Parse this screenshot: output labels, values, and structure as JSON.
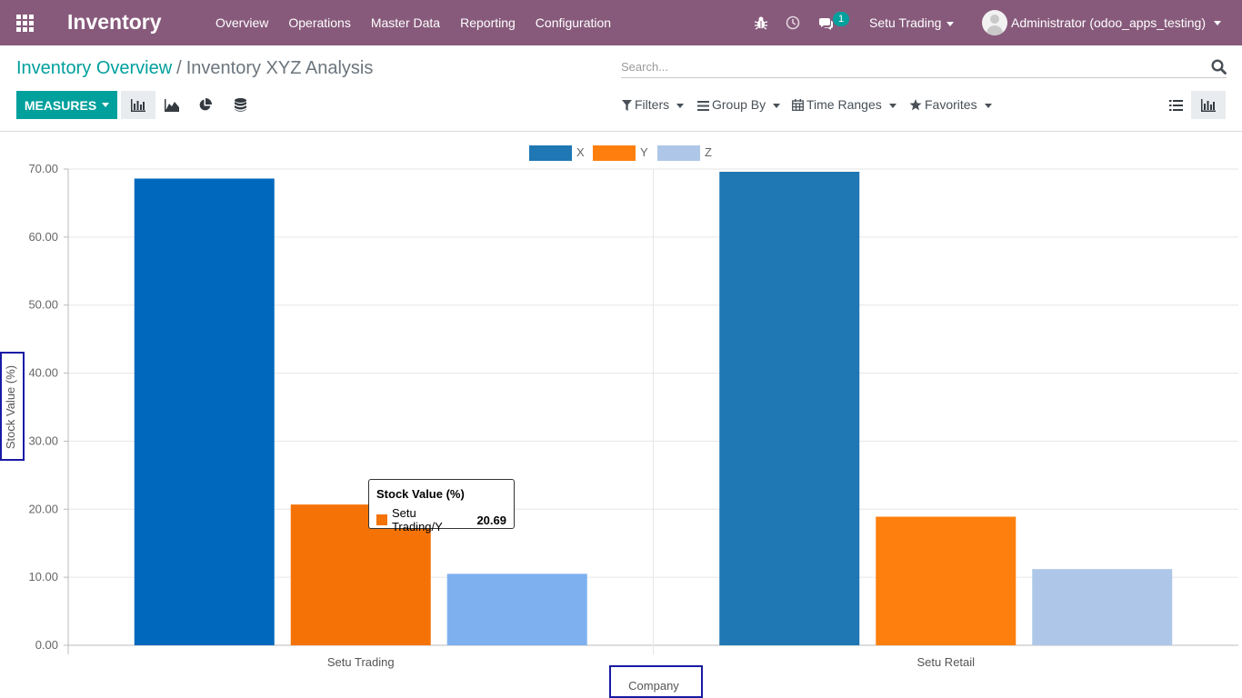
{
  "navbar": {
    "brand": "Inventory",
    "menu": [
      "Overview",
      "Operations",
      "Master Data",
      "Reporting",
      "Configuration"
    ],
    "message_count": "1",
    "company": "Setu Trading",
    "user": "Administrator (odoo_apps_testing)",
    "bg_color": "#875a7b"
  },
  "breadcrumb": {
    "parent": "Inventory Overview",
    "separator": "/",
    "current": "Inventory XYZ Analysis"
  },
  "search": {
    "placeholder": "Search..."
  },
  "toolbar": {
    "measures_label": "MEASURES",
    "chart_modes": [
      "bar-chart-icon",
      "line-chart-icon",
      "pie-chart-icon",
      "stack-icon"
    ],
    "filters_label": "Filters",
    "groupby_label": "Group By",
    "timeranges_label": "Time Ranges",
    "favorites_label": "Favorites",
    "accent_color": "#00a09d"
  },
  "tooltip": {
    "title": "Stock Value (%)",
    "label": "Setu Trading/Y",
    "value": "20.69",
    "color": "#f57306"
  },
  "chart_data": {
    "type": "bar",
    "title": "",
    "xlabel": "Company",
    "ylabel": "Stock Value (%)",
    "categories": [
      "Setu Trading",
      "Setu Retail"
    ],
    "series": [
      {
        "name": "X",
        "values": [
          68.6,
          69.6
        ],
        "colors": [
          "#0068bd",
          "#1f77b4"
        ]
      },
      {
        "name": "Y",
        "values": [
          20.69,
          18.9
        ],
        "colors": [
          "#f57306",
          "#ff7f0e"
        ]
      },
      {
        "name": "Z",
        "values": [
          10.5,
          11.2
        ],
        "colors": [
          "#7eb0f0",
          "#aec7e8"
        ]
      }
    ],
    "legend_colors": [
      "#1f77b4",
      "#ff7f0e",
      "#aec7e8"
    ],
    "yticks": [
      "0.00",
      "10.00",
      "20.00",
      "30.00",
      "40.00",
      "50.00",
      "60.00",
      "70.00"
    ],
    "ylim": [
      0,
      70
    ],
    "grid": true,
    "legend": "top-center"
  }
}
